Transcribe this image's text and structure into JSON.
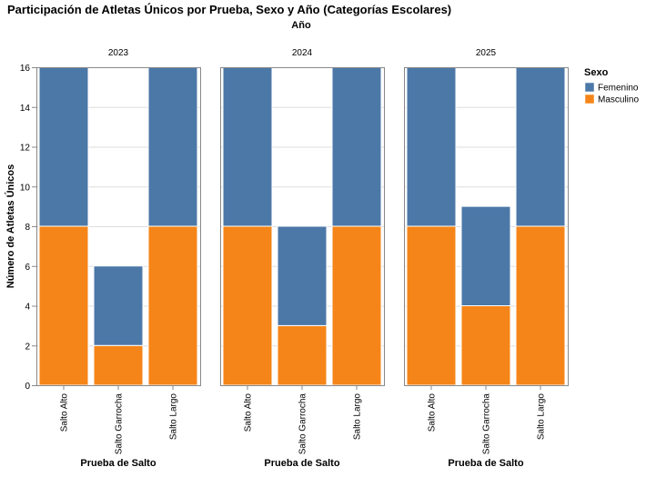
{
  "chart_data": {
    "type": "bar",
    "stacked": true,
    "title": "Participación de Atletas Únicos por Prueba, Sexo y Año (Categorías Escolares)",
    "facet_title": "Año",
    "facets": [
      "2023",
      "2024",
      "2025"
    ],
    "categories": [
      "Salto Alto",
      "Salto Garrocha",
      "Salto Largo"
    ],
    "xlabel": "Prueba de Salto",
    "ylabel": "Número de Atletas Únicos",
    "ylim": [
      0,
      16
    ],
    "yticks": [
      0,
      2,
      4,
      6,
      8,
      10,
      12,
      14,
      16
    ],
    "grid": true,
    "legend": {
      "title": "Sexo",
      "placement": "top-right",
      "entries": [
        "Femenino",
        "Masculino"
      ]
    },
    "colors": {
      "Femenino": "#4c78a8",
      "Masculino": "#f58518"
    },
    "data": [
      {
        "facet": "2023",
        "series": [
          {
            "name": "Masculino",
            "values": [
              8,
              2,
              8
            ]
          },
          {
            "name": "Femenino",
            "values": [
              8,
              4,
              8
            ]
          }
        ]
      },
      {
        "facet": "2024",
        "series": [
          {
            "name": "Masculino",
            "values": [
              8,
              3,
              8
            ]
          },
          {
            "name": "Femenino",
            "values": [
              8,
              5,
              8
            ]
          }
        ]
      },
      {
        "facet": "2025",
        "series": [
          {
            "name": "Masculino",
            "values": [
              8,
              4,
              8
            ]
          },
          {
            "name": "Femenino",
            "values": [
              8,
              5,
              8
            ]
          }
        ]
      }
    ]
  }
}
